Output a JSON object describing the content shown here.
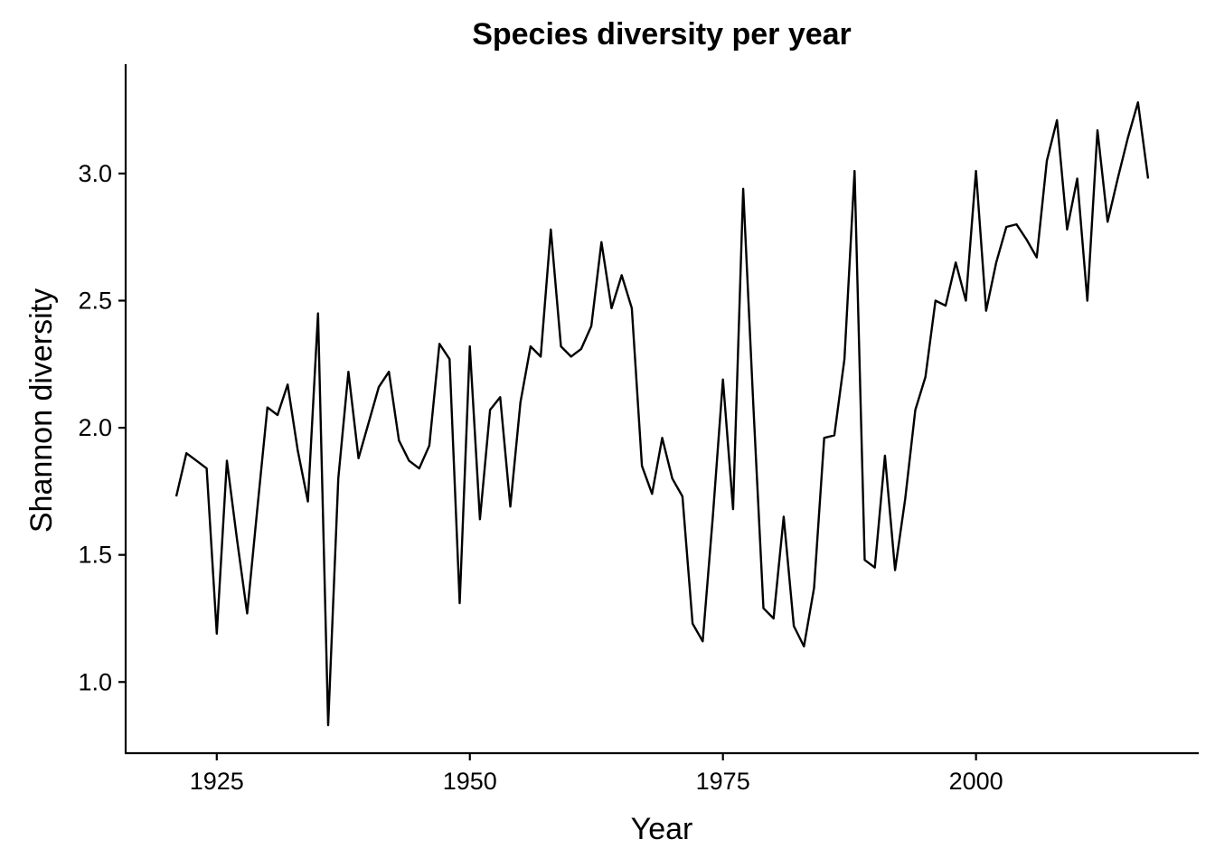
{
  "chart_data": {
    "type": "line",
    "title": "Species diversity per year",
    "xlabel": "Year",
    "ylabel": "Shannon diversity",
    "xlim": [
      1916,
      2022
    ],
    "ylim": [
      0.72,
      3.43
    ],
    "xticks": [
      1925,
      1950,
      1975,
      2000
    ],
    "xtick_labels": [
      "1925",
      "1950",
      "1975",
      "2000"
    ],
    "yticks": [
      1.0,
      1.5,
      2.0,
      2.5,
      3.0
    ],
    "ytick_labels": [
      "1.0",
      "1.5",
      "2.0",
      "2.5",
      "3.0"
    ],
    "grid": false,
    "series": [
      {
        "x": [
          1921,
          1922,
          1923,
          1924,
          1925,
          1926,
          1927,
          1928,
          1929,
          1930,
          1931,
          1932,
          1933,
          1934,
          1935,
          1936,
          1937,
          1938,
          1939,
          1940,
          1941,
          1942,
          1943,
          1944,
          1945,
          1946,
          1947,
          1948,
          1949,
          1950,
          1951,
          1952,
          1953,
          1954,
          1955,
          1956,
          1957,
          1958,
          1959,
          1960,
          1961,
          1962,
          1963,
          1964,
          1965,
          1966,
          1967,
          1968,
          1969,
          1970,
          1971,
          1972,
          1973,
          1974,
          1975,
          1976,
          1977,
          1978,
          1979,
          1980,
          1981,
          1982,
          1983,
          1984,
          1985,
          1986,
          1987,
          1988,
          1989,
          1990,
          1991,
          1992,
          1993,
          1994,
          1995,
          1996,
          1997,
          1998,
          1999,
          2000,
          2001,
          2002,
          2003,
          2004,
          2005,
          2006,
          2007,
          2008,
          2009,
          2010,
          2011,
          2012,
          2013,
          2014,
          2015,
          2016,
          2017
        ],
        "y": [
          1.73,
          1.9,
          1.87,
          1.84,
          1.19,
          1.87,
          1.56,
          1.27,
          1.68,
          2.08,
          2.05,
          2.17,
          1.91,
          1.71,
          2.45,
          0.83,
          1.8,
          2.22,
          1.88,
          2.02,
          2.16,
          2.22,
          1.95,
          1.87,
          1.84,
          1.93,
          2.33,
          2.27,
          1.31,
          2.32,
          1.64,
          2.07,
          2.12,
          1.69,
          2.1,
          2.32,
          2.28,
          2.78,
          2.32,
          2.28,
          2.31,
          2.4,
          2.73,
          2.47,
          2.6,
          2.47,
          1.85,
          1.74,
          1.96,
          1.8,
          1.73,
          1.23,
          1.16,
          1.65,
          2.19,
          1.68,
          2.94,
          2.09,
          1.29,
          1.25,
          1.65,
          1.22,
          1.14,
          1.37,
          1.96,
          1.97,
          2.27,
          3.01,
          1.48,
          1.45,
          1.89,
          1.44,
          1.72,
          2.07,
          2.2,
          2.5,
          2.48,
          2.65,
          2.5,
          3.01,
          2.46,
          2.65,
          2.79,
          2.8,
          2.74,
          2.67,
          3.05,
          3.21,
          2.78,
          2.98,
          2.5,
          3.17,
          2.81,
          2.98,
          3.14,
          3.28,
          2.98
        ]
      }
    ]
  }
}
